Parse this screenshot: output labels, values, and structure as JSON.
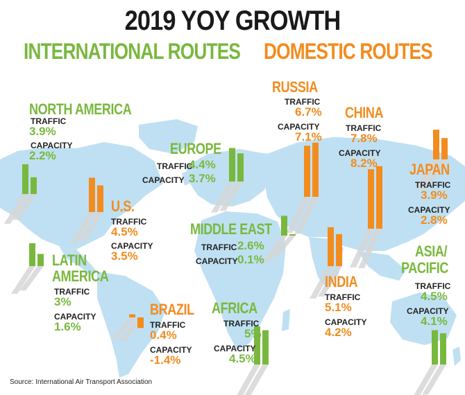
{
  "title": "2019 YOY GROWTH",
  "legend": {
    "international": "INTERNATIONAL ROUTES",
    "domestic": "DOMESTIC ROUTES"
  },
  "colors": {
    "international": "#79b83e",
    "domestic": "#f28c1f",
    "map": "#bfe0f2",
    "shadow": "#d6d6d6",
    "title": "#1a1a1a"
  },
  "labels": {
    "traffic": "TRAFFIC",
    "capacity": "CAPACITY"
  },
  "chart_data": {
    "type": "bar",
    "series": [
      {
        "name": "TRAFFIC"
      },
      {
        "name": "CAPACITY"
      }
    ],
    "regions": [
      {
        "id": "north_america",
        "name": "NORTH AMERICA",
        "group": "international",
        "traffic": "3.9%",
        "capacity": "2.2%",
        "traffic_value": 3.9,
        "capacity_value": 2.2
      },
      {
        "id": "europe",
        "name": "EUROPE",
        "group": "international",
        "traffic": "4.4%",
        "capacity": "3.7%",
        "traffic_value": 4.4,
        "capacity_value": 3.7
      },
      {
        "id": "middle_east",
        "name": "MIDDLE EAST",
        "group": "international",
        "traffic": "2.6%",
        "capacity": "0.1%",
        "traffic_value": 2.6,
        "capacity_value": 0.1
      },
      {
        "id": "latin_america",
        "name": "LATIN AMERICA",
        "name_lines": [
          "LATIN",
          "AMERICA"
        ],
        "group": "international",
        "traffic": "3%",
        "capacity": "1.6%",
        "traffic_value": 3.0,
        "capacity_value": 1.6
      },
      {
        "id": "africa",
        "name": "AFRICA",
        "group": "international",
        "traffic": "5%",
        "capacity": "4.5%",
        "traffic_value": 5.0,
        "capacity_value": 4.5
      },
      {
        "id": "asia_pacific",
        "name": "ASIA/ PACIFIC",
        "name_lines": [
          "ASIA/",
          "PACIFIC"
        ],
        "group": "international",
        "traffic": "4.5%",
        "capacity": "4.1%",
        "traffic_value": 4.5,
        "capacity_value": 4.1
      },
      {
        "id": "us",
        "name": "U.S.",
        "group": "domestic",
        "traffic": "4.5%",
        "capacity": "3.5%",
        "traffic_value": 4.5,
        "capacity_value": 3.5
      },
      {
        "id": "russia",
        "name": "RUSSIA",
        "group": "domestic",
        "traffic": "6.7%",
        "capacity": "7.1%",
        "traffic_value": 6.7,
        "capacity_value": 7.1
      },
      {
        "id": "china",
        "name": "CHINA",
        "group": "domestic",
        "traffic": "7.8%",
        "capacity": "8.2%",
        "traffic_value": 7.8,
        "capacity_value": 8.2
      },
      {
        "id": "japan",
        "name": "JAPAN",
        "group": "domestic",
        "traffic": "3.9%",
        "capacity": "2.8%",
        "traffic_value": 3.9,
        "capacity_value": 2.8
      },
      {
        "id": "india",
        "name": "INDIA",
        "group": "domestic",
        "traffic": "5.1%",
        "capacity": "4.2%",
        "traffic_value": 5.1,
        "capacity_value": 4.2
      },
      {
        "id": "brazil",
        "name": "BRAZIL",
        "group": "domestic",
        "traffic": "0.4%",
        "capacity": "-1.4%",
        "traffic_value": 0.4,
        "capacity_value": -1.4
      }
    ]
  },
  "source": "Source: International Air Transport Association"
}
